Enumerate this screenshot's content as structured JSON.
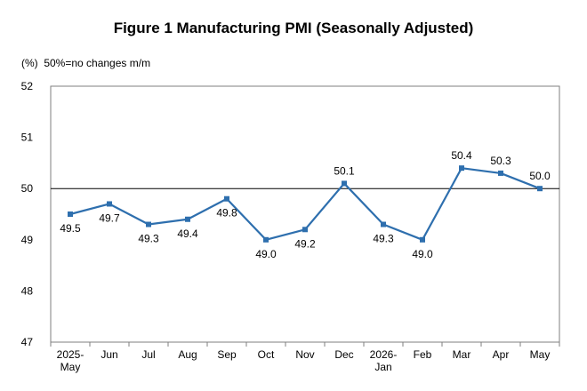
{
  "chart_data": {
    "type": "line",
    "title": "Figure 1 Manufacturing PMI (Seasonally Adjusted)",
    "unit_note": "(%)  50%=no changes m/m",
    "xlabel": "",
    "ylabel": "",
    "ylim": [
      47,
      52
    ],
    "yticks": [
      47,
      48,
      49,
      50,
      51,
      52
    ],
    "reference_line": 50,
    "grid": false,
    "legend": "none",
    "categories": [
      [
        "2025-",
        "May"
      ],
      [
        "Jun"
      ],
      [
        "Jul"
      ],
      [
        "Aug"
      ],
      [
        "Sep"
      ],
      [
        "Oct"
      ],
      [
        "Nov"
      ],
      [
        "Dec"
      ],
      [
        "2026-",
        "Jan"
      ],
      [
        "Feb"
      ],
      [
        "Mar"
      ],
      [
        "Apr"
      ],
      [
        "May"
      ]
    ],
    "series": [
      {
        "values": [
          49.5,
          49.7,
          49.3,
          49.4,
          49.8,
          49.0,
          49.2,
          50.1,
          49.3,
          49.0,
          50.4,
          50.3,
          50.0
        ],
        "data_labels": [
          "49.5",
          "49.7",
          "49.3",
          "49.4",
          "49.8",
          "49.0",
          "49.2",
          "50.1",
          "49.3",
          "49.0",
          "50.4",
          "50.3",
          "50.0"
        ],
        "label_position": [
          "below",
          "below",
          "below",
          "below",
          "below",
          "below",
          "below",
          "above",
          "below",
          "below",
          "above",
          "above",
          "above"
        ],
        "color": "#2e6fae"
      }
    ]
  }
}
